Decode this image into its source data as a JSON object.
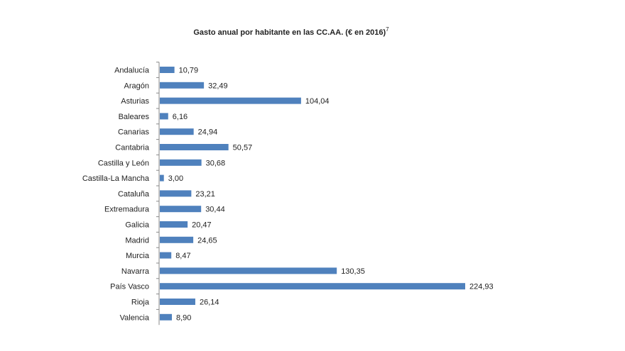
{
  "chart_data": {
    "type": "bar",
    "orientation": "horizontal",
    "title": "Gasto anual por habitante en las CC.AA. (€ en 2016)",
    "title_note": "7",
    "categories": [
      "Andalucía",
      "Aragón",
      "Asturias",
      "Baleares",
      "Canarias",
      "Cantabria",
      "Castilla y León",
      "Castilla-La Mancha",
      "Cataluña",
      "Extremadura",
      "Galicia",
      "Madrid",
      "Murcia",
      "Navarra",
      "País Vasco",
      "Rioja",
      "Valencia"
    ],
    "values": [
      10.79,
      32.49,
      104.04,
      6.16,
      24.94,
      50.57,
      30.68,
      3.0,
      23.21,
      30.44,
      20.47,
      24.65,
      8.47,
      130.35,
      224.93,
      26.14,
      8.9
    ],
    "value_labels": [
      "10,79",
      "32,49",
      "104,04",
      "6,16",
      "24,94",
      "50,57",
      "30,68",
      "3,00",
      "23,21",
      "30,44",
      "20,47",
      "24,65",
      "8,47",
      "130,35",
      "224,93",
      "26,14",
      "8,90"
    ],
    "xlim": [
      0,
      224.93
    ],
    "bar_color": "#4f81bd",
    "axis_color": "#888888",
    "grid": false,
    "legend": "none"
  }
}
